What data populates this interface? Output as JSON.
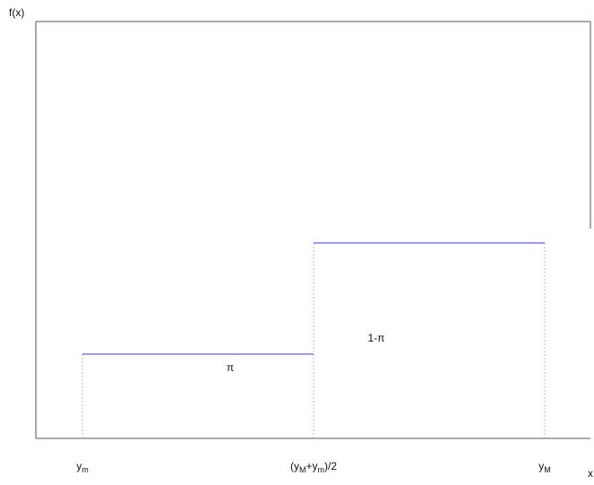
{
  "y_axis_label": "f(x)",
  "x_axis_label": "x",
  "regions": [
    {
      "label": "π"
    },
    {
      "label": "1-π"
    }
  ],
  "x_labels": [
    {
      "parts": [
        {
          "text": "y"
        },
        {
          "sub": "m"
        }
      ]
    },
    {
      "parts": [
        {
          "text": "(y"
        },
        {
          "sub": "M"
        },
        {
          "text": "+y"
        },
        {
          "sub": "m"
        },
        {
          "text": ")/2"
        }
      ]
    },
    {
      "parts": [
        {
          "text": "y"
        },
        {
          "sub": "M"
        }
      ]
    }
  ]
}
